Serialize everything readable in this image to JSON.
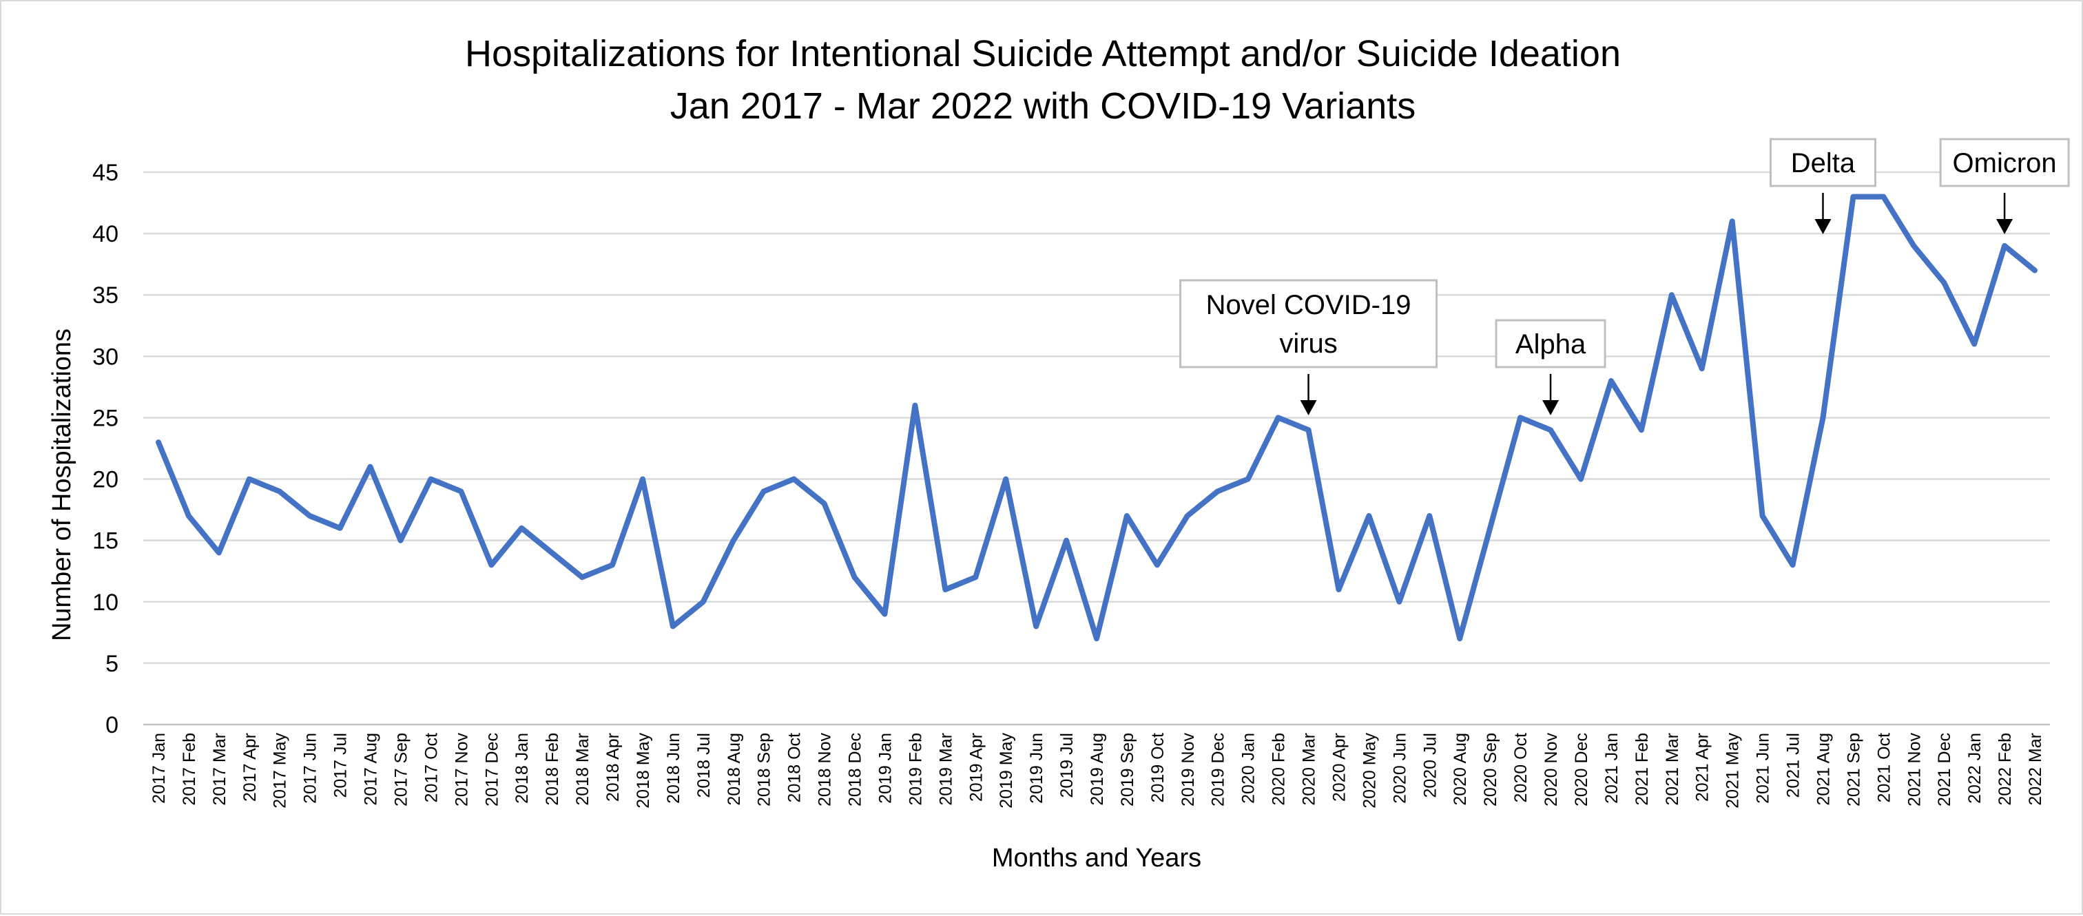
{
  "chart_data": {
    "type": "line",
    "title": [
      "Hospitalizations for Intentional Suicide Attempt and/or Suicide Ideation",
      "Jan 2017 - Mar 2022 with COVID-19 Variants"
    ],
    "xlabel": "Months and Years",
    "ylabel": "Number of Hospitalizations",
    "ylim": [
      0,
      45
    ],
    "yticks": [
      0,
      5,
      10,
      15,
      20,
      25,
      30,
      35,
      40,
      45
    ],
    "grid": true,
    "legend": "none",
    "colors": {
      "series": "#4472c4",
      "grid": "#d9d9d9"
    },
    "categories": [
      "2017 Jan",
      "2017 Feb",
      "2017 Mar",
      "2017 Apr",
      "2017 May",
      "2017 Jun",
      "2017 Jul",
      "2017 Aug",
      "2017 Sep",
      "2017 Oct",
      "2017 Nov",
      "2017 Dec",
      "2018 Jan",
      "2018 Feb",
      "2018 Mar",
      "2018 Apr",
      "2018 May",
      "2018 Jun",
      "2018 Jul",
      "2018 Aug",
      "2018 Sep",
      "2018 Oct",
      "2018 Nov",
      "2018 Dec",
      "2019 Jan",
      "2019 Feb",
      "2019 Mar",
      "2019 Apr",
      "2019 May",
      "2019 Jun",
      "2019 Jul",
      "2019 Aug",
      "2019 Sep",
      "2019 Oct",
      "2019 Nov",
      "2019 Dec",
      "2020 Jan",
      "2020 Feb",
      "2020 Mar",
      "2020 Apr",
      "2020 May",
      "2020 Jun",
      "2020 Jul",
      "2020 Aug",
      "2020 Sep",
      "2020 Oct",
      "2020 Nov",
      "2020 Dec",
      "2021 Jan",
      "2021 Feb",
      "2021 Mar",
      "2021 Apr",
      "2021 May",
      "2021 Jun",
      "2021 Jul",
      "2021 Aug",
      "2021 Sep",
      "2021 Oct",
      "2021 Nov",
      "2021 Dec",
      "2022 Jan",
      "2022 Feb",
      "2022 Mar"
    ],
    "series": [
      {
        "values": [
          23,
          17,
          14,
          20,
          19,
          17,
          16,
          21,
          15,
          20,
          19,
          13,
          16,
          14,
          12,
          13,
          20,
          8,
          10,
          15,
          19,
          20,
          18,
          12,
          9,
          26,
          11,
          12,
          20,
          8,
          15,
          7,
          17,
          13,
          17,
          19,
          20,
          25,
          24,
          11,
          17,
          10,
          17,
          7,
          16,
          25,
          24,
          20,
          28,
          24,
          35,
          29,
          41,
          17,
          13,
          25,
          43,
          43,
          39,
          36,
          31,
          39,
          37
        ]
      }
    ],
    "annotations": [
      {
        "lines": [
          "Novel COVID-19",
          "virus"
        ],
        "points_to": "2020 Mar"
      },
      {
        "lines": [
          "Alpha"
        ],
        "points_to": "2020 Nov"
      },
      {
        "lines": [
          "Delta"
        ],
        "points_to": "2021 Aug"
      },
      {
        "lines": [
          "Omicron"
        ],
        "points_to": "2022 Feb"
      }
    ]
  }
}
